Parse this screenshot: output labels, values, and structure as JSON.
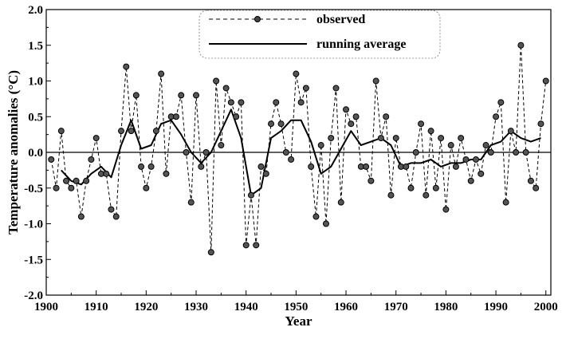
{
  "chart_data": {
    "type": "line",
    "xlabel": "Year",
    "ylabel": "Temperature  anomalies (°C)",
    "xlim": [
      1900,
      2001
    ],
    "ylim": [
      -2.0,
      2.0
    ],
    "x_ticks": [
      1900,
      1910,
      1920,
      1930,
      1940,
      1950,
      1960,
      1970,
      1980,
      1990,
      2000
    ],
    "y_ticks": [
      "-2.0",
      "-1.5",
      "-1.0",
      "-0.5",
      "0.0",
      "0.5",
      "1.0",
      "1.5",
      "2.0"
    ],
    "zero_line": true,
    "legend_position": "top-center",
    "series": [
      {
        "name": "observed",
        "style": "dashed-with-circles",
        "x": [
          1901,
          1902,
          1903,
          1904,
          1905,
          1906,
          1907,
          1908,
          1909,
          1910,
          1911,
          1912,
          1913,
          1914,
          1915,
          1916,
          1917,
          1918,
          1919,
          1920,
          1921,
          1922,
          1923,
          1924,
          1925,
          1926,
          1927,
          1928,
          1929,
          1930,
          1931,
          1932,
          1933,
          1934,
          1935,
          1936,
          1937,
          1938,
          1939,
          1940,
          1941,
          1942,
          1943,
          1944,
          1945,
          1946,
          1947,
          1948,
          1949,
          1950,
          1951,
          1952,
          1953,
          1954,
          1955,
          1956,
          1957,
          1958,
          1959,
          1960,
          1961,
          1962,
          1963,
          1964,
          1965,
          1966,
          1967,
          1968,
          1969,
          1970,
          1971,
          1972,
          1973,
          1974,
          1975,
          1976,
          1977,
          1978,
          1979,
          1980,
          1981,
          1982,
          1983,
          1984,
          1985,
          1986,
          1987,
          1988,
          1989,
          1990,
          1991,
          1992,
          1993,
          1994,
          1995,
          1996,
          1997,
          1998,
          1999,
          2000
        ],
        "values": [
          -0.1,
          -0.5,
          0.3,
          -0.4,
          -0.5,
          -0.4,
          -0.9,
          -0.4,
          -0.1,
          0.2,
          -0.3,
          -0.3,
          -0.8,
          -0.9,
          0.3,
          1.2,
          0.3,
          0.8,
          -0.2,
          -0.5,
          -0.2,
          0.3,
          1.1,
          -0.3,
          0.5,
          0.5,
          0.8,
          0.0,
          -0.7,
          0.8,
          -0.2,
          0.0,
          -1.4,
          1.0,
          0.1,
          0.9,
          0.7,
          0.5,
          0.7,
          -1.3,
          -0.6,
          -1.3,
          -0.2,
          -0.3,
          0.4,
          0.7,
          0.4,
          0.0,
          -0.1,
          1.1,
          0.7,
          0.9,
          -0.2,
          -0.9,
          0.1,
          -1.0,
          0.2,
          0.9,
          -0.7,
          0.6,
          0.4,
          0.5,
          -0.2,
          -0.2,
          -0.4,
          1.0,
          0.2,
          0.5,
          -0.6,
          0.2,
          -0.2,
          -0.2,
          -0.5,
          0.0,
          0.4,
          -0.6,
          0.3,
          -0.5,
          0.2,
          -0.8,
          0.1,
          -0.2,
          0.2,
          -0.1,
          -0.4,
          -0.1,
          -0.3,
          0.1,
          0.0,
          0.5,
          0.7,
          -0.7,
          0.3,
          0.0,
          1.5,
          0.0,
          -0.4,
          -0.5,
          0.4,
          1.0
        ]
      },
      {
        "name": "running average",
        "style": "solid",
        "x": [
          1903,
          1905,
          1907,
          1909,
          1911,
          1913,
          1915,
          1917,
          1919,
          1921,
          1923,
          1925,
          1927,
          1929,
          1931,
          1933,
          1935,
          1937,
          1939,
          1941,
          1943,
          1945,
          1947,
          1949,
          1951,
          1953,
          1955,
          1957,
          1959,
          1961,
          1963,
          1965,
          1967,
          1969,
          1971,
          1973,
          1975,
          1977,
          1979,
          1981,
          1983,
          1985,
          1987,
          1989,
          1991,
          1993,
          1995,
          1997,
          1999
        ],
        "values": [
          -0.25,
          -0.4,
          -0.45,
          -0.3,
          -0.2,
          -0.35,
          0.1,
          0.45,
          0.05,
          0.1,
          0.4,
          0.45,
          0.25,
          0.0,
          -0.15,
          0.0,
          0.3,
          0.6,
          0.2,
          -0.6,
          -0.5,
          0.2,
          0.3,
          0.45,
          0.45,
          0.15,
          -0.3,
          -0.2,
          0.05,
          0.3,
          0.1,
          0.15,
          0.2,
          0.1,
          -0.2,
          -0.15,
          -0.15,
          -0.1,
          -0.2,
          -0.15,
          -0.15,
          -0.1,
          -0.1,
          0.1,
          0.15,
          0.3,
          0.2,
          0.15,
          0.2
        ]
      }
    ],
    "line_color": "#000000"
  }
}
